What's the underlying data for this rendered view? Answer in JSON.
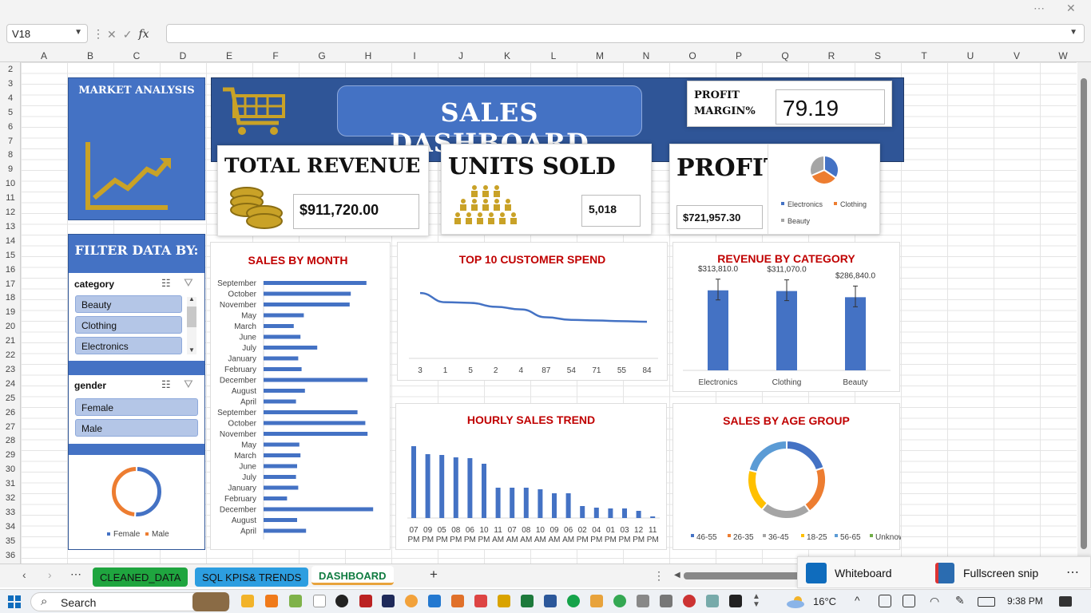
{
  "window": {
    "minimize": "⋯",
    "close": "✕"
  },
  "formula_bar": {
    "name_box": "V18",
    "formula": ""
  },
  "columns": [
    "A",
    "B",
    "C",
    "D",
    "E",
    "F",
    "G",
    "H",
    "I",
    "J",
    "K",
    "L",
    "M",
    "N",
    "O",
    "P",
    "Q",
    "R",
    "S",
    "T",
    "U",
    "V",
    "W"
  ],
  "rows": [
    "2",
    "3",
    "4",
    "5",
    "6",
    "7",
    "8",
    "9",
    "10",
    "11",
    "12",
    "13",
    "14",
    "15",
    "16",
    "17",
    "18",
    "19",
    "20",
    "21",
    "22",
    "23",
    "24",
    "25",
    "26",
    "27",
    "28",
    "29",
    "30",
    "31",
    "32",
    "33",
    "34",
    "35",
    "36"
  ],
  "dashboard": {
    "market_title": "MARKET ANALYSIS",
    "main_title": "SALES DASHBOARD",
    "profit_margin_label_1": "PROFIT",
    "profit_margin_label_2": "MARGIN%",
    "profit_margin_value": "79.19",
    "total_revenue_label": "TOTAL REVENUE",
    "total_revenue_value": "$911,720.00",
    "units_sold_label": "UNITS SOLD",
    "units_sold_value": "5,018",
    "profit_label": "PROFIT",
    "profit_value": "$721,957.30",
    "filter_title": "FILTER DATA BY:",
    "accent_blue": "#4472c4",
    "gold": "#c9a227",
    "title_red": "#c00000"
  },
  "slicers": {
    "category": {
      "header": "category",
      "items": [
        "Beauty",
        "Clothing",
        "Electronics"
      ]
    },
    "gender": {
      "header": "gender",
      "items": [
        "Female",
        "Male"
      ]
    }
  },
  "charts": {
    "sales_by_month_title": "SALES BY MONTH",
    "top10_title": "TOP 10 CUSTOMER SPEND",
    "revenue_by_category_title": "REVENUE BY CATEGORY",
    "hourly_title": "HOURLY SALES TREND",
    "age_group_title": "SALES BY AGE GROUP"
  },
  "chart_data": [
    {
      "id": "profit_pie",
      "type": "pie",
      "categories": [
        "Electronics",
        "Clothing",
        "Beauty"
      ],
      "values": [
        34.4,
        34.1,
        31.5
      ],
      "colors": [
        "#4472c4",
        "#ed7d31",
        "#a5a5a5"
      ],
      "legend": "bottom"
    },
    {
      "id": "sales_by_month",
      "type": "bar",
      "orientation": "horizontal",
      "title": "SALES BY MONTH",
      "categories": [
        "September",
        "October",
        "November",
        "May",
        "March",
        "June",
        "July",
        "January",
        "February",
        "December",
        "August",
        "April",
        "September",
        "October",
        "November",
        "May",
        "March",
        "June",
        "July",
        "January",
        "February",
        "December",
        "August",
        "April"
      ],
      "values": [
        92,
        78,
        77,
        36,
        27,
        33,
        48,
        31,
        34,
        93,
        37,
        29,
        84,
        91,
        93,
        32,
        33,
        30,
        29,
        31,
        21,
        98,
        30,
        38
      ],
      "xlim": [
        0,
        100
      ]
    },
    {
      "id": "top10_customer",
      "type": "line",
      "title": "TOP 10 CUSTOMER SPEND",
      "categories": [
        "3",
        "1",
        "5",
        "2",
        "4",
        "87",
        "54",
        "71",
        "55",
        "84"
      ],
      "values": [
        100,
        86,
        85,
        79,
        75,
        63,
        59,
        58,
        57,
        56
      ],
      "ylim": [
        0,
        110
      ]
    },
    {
      "id": "revenue_by_category",
      "type": "bar",
      "title": "REVENUE BY CATEGORY",
      "categories": [
        "Electronics",
        "Clothing",
        "Beauty"
      ],
      "values": [
        313810,
        311070,
        286840
      ],
      "labels": [
        "$313,810.0",
        "$311,070.0",
        "$286,840.0"
      ],
      "ylim": [
        0,
        360000
      ]
    },
    {
      "id": "hourly_sales",
      "type": "bar",
      "title": "HOURLY SALES TREND",
      "categories": [
        "07 PM",
        "09 PM",
        "05 PM",
        "08 PM",
        "06 PM",
        "10 PM",
        "11 AM",
        "07 AM",
        "08 AM",
        "10 AM",
        "09 AM",
        "06 AM",
        "02 PM",
        "04 PM",
        "01 PM",
        "03 PM",
        "12 PM",
        "11 PM"
      ],
      "values": [
        90,
        80,
        79,
        76,
        75,
        68,
        38,
        38,
        38,
        36,
        31,
        31,
        15,
        13,
        12,
        12,
        9,
        2
      ],
      "ylim": [
        0,
        100
      ]
    },
    {
      "id": "age_group",
      "type": "pie",
      "donut": true,
      "title": "SALES BY AGE GROUP",
      "categories": [
        "46-55",
        "26-35",
        "36-45",
        "18-25",
        "56-65",
        "Unknown"
      ],
      "values": [
        20,
        20,
        21,
        18,
        21,
        0
      ],
      "colors": [
        "#4472c4",
        "#ed7d31",
        "#a5a5a5",
        "#ffc000",
        "#5b9bd5",
        "#70ad47"
      ],
      "legend": "bottom"
    },
    {
      "id": "gender_donut",
      "type": "pie",
      "donut": true,
      "categories": [
        "Female",
        "Male"
      ],
      "values": [
        51,
        49
      ],
      "colors": [
        "#4472c4",
        "#ed7d31"
      ],
      "legend": "bottom"
    }
  ],
  "sheets": {
    "tabs": [
      "CLEANED_DATA",
      "SQL KPIS& TRENDS",
      "DASHBOARD"
    ],
    "add": "+",
    "more": "⋯"
  },
  "popup": {
    "whiteboard": "Whiteboard",
    "snip": "Fullscreen snip",
    "more": "⋯"
  },
  "taskbar": {
    "search": "Search",
    "temp": "16°C",
    "time": "9:38 PM"
  }
}
